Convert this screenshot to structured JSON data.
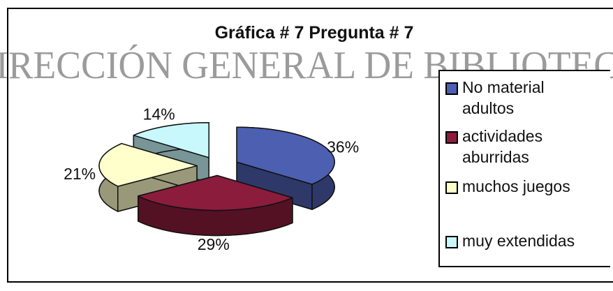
{
  "watermark": "IRECCIÓN GENERAL DE BIBLIOTEC",
  "chart_data": {
    "type": "pie",
    "title": "Gráfica # 7 Pregunta # 7",
    "categories": [
      "No material adultos",
      "actividades aburridas",
      "muchos juegos",
      "muy extendidas"
    ],
    "values": [
      36,
      29,
      21,
      14
    ],
    "value_labels": [
      "36%",
      "29%",
      "21%",
      "14%"
    ],
    "colors": [
      "#4d5fb0",
      "#8c1c3c",
      "#ffffcc",
      "#c8f8fc"
    ],
    "legend": "right"
  }
}
